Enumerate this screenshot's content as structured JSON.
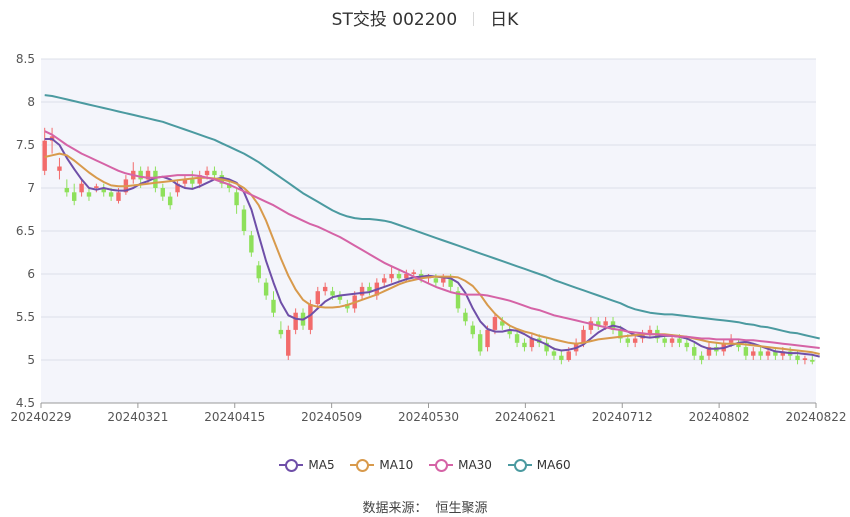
{
  "header": {
    "title": "ST交投 002200",
    "period": "日K"
  },
  "source": {
    "label": "数据来源：",
    "name": "恒生聚源"
  },
  "legend": [
    {
      "name": "MA5",
      "color": "#6f4fa8"
    },
    {
      "name": "MA10",
      "color": "#d89a4c"
    },
    {
      "name": "MA30",
      "color": "#d563a6"
    },
    {
      "name": "MA60",
      "color": "#4b9aa0"
    }
  ],
  "colors": {
    "up": "#f26b6b",
    "down": "#8ee05a",
    "plot_bg": "#f4f5fb",
    "grid": "#dde0ea"
  },
  "chart_data": {
    "type": "candlestick",
    "ylim": [
      4.5,
      8.5
    ],
    "yticks": [
      "8.5",
      "8",
      "7.5",
      "7",
      "6.5",
      "6",
      "5.5",
      "5",
      "4.5"
    ],
    "xlabels": [
      "20240229",
      "20240321",
      "20240415",
      "20240509",
      "20240530",
      "20240621",
      "20240712",
      "20240802",
      "20240822"
    ],
    "grid": true,
    "legend_position": "bottom",
    "candles": [
      [
        7.2,
        7.55,
        7.7,
        7.15
      ],
      [
        7.55,
        7.6,
        7.7,
        7.4
      ],
      [
        7.2,
        7.25,
        7.35,
        7.1
      ],
      [
        7.0,
        6.95,
        7.1,
        6.9
      ],
      [
        6.95,
        6.85,
        7.05,
        6.8
      ],
      [
        6.95,
        7.05,
        7.1,
        6.9
      ],
      [
        6.95,
        6.9,
        7.0,
        6.85
      ],
      [
        7.0,
        7.02,
        7.05,
        6.95
      ],
      [
        7.0,
        6.95,
        7.05,
        6.9
      ],
      [
        6.95,
        6.9,
        7.0,
        6.85
      ],
      [
        6.85,
        6.95,
        7.0,
        6.82
      ],
      [
        6.95,
        7.1,
        7.15,
        6.92
      ],
      [
        7.1,
        7.2,
        7.3,
        7.05
      ],
      [
        7.2,
        7.1,
        7.25,
        7.0
      ],
      [
        7.1,
        7.2,
        7.25,
        7.05
      ],
      [
        7.2,
        7.0,
        7.25,
        6.95
      ],
      [
        7.0,
        6.9,
        7.05,
        6.85
      ],
      [
        6.9,
        6.8,
        6.95,
        6.75
      ],
      [
        6.95,
        7.05,
        7.1,
        6.9
      ],
      [
        7.05,
        7.1,
        7.15,
        7.0
      ],
      [
        7.1,
        7.05,
        7.2,
        7.0
      ],
      [
        7.05,
        7.15,
        7.2,
        7.0
      ],
      [
        7.15,
        7.2,
        7.25,
        7.1
      ],
      [
        7.2,
        7.15,
        7.25,
        7.1
      ],
      [
        7.15,
        7.05,
        7.2,
        7.0
      ],
      [
        7.05,
        7.0,
        7.1,
        6.95
      ],
      [
        6.95,
        6.8,
        7.0,
        6.7
      ],
      [
        6.75,
        6.5,
        6.8,
        6.45
      ],
      [
        6.45,
        6.25,
        6.5,
        6.2
      ],
      [
        6.1,
        5.95,
        6.15,
        5.9
      ],
      [
        5.9,
        5.75,
        5.95,
        5.7
      ],
      [
        5.7,
        5.55,
        5.8,
        5.5
      ],
      [
        5.35,
        5.3,
        5.45,
        5.25
      ],
      [
        5.05,
        5.35,
        5.4,
        5.0
      ],
      [
        5.35,
        5.55,
        5.6,
        5.3
      ],
      [
        5.55,
        5.4,
        5.6,
        5.35
      ],
      [
        5.35,
        5.65,
        5.7,
        5.3
      ],
      [
        5.65,
        5.8,
        5.85,
        5.6
      ],
      [
        5.8,
        5.85,
        5.9,
        5.75
      ],
      [
        5.8,
        5.75,
        5.85,
        5.7
      ],
      [
        5.75,
        5.7,
        5.8,
        5.65
      ],
      [
        5.65,
        5.6,
        5.7,
        5.55
      ],
      [
        5.6,
        5.75,
        5.8,
        5.55
      ],
      [
        5.75,
        5.85,
        5.9,
        5.7
      ],
      [
        5.85,
        5.8,
        5.9,
        5.75
      ],
      [
        5.75,
        5.9,
        5.95,
        5.7
      ],
      [
        5.9,
        5.95,
        6.0,
        5.85
      ],
      [
        5.95,
        6.0,
        6.1,
        5.9
      ],
      [
        6.0,
        5.95,
        6.05,
        5.9
      ],
      [
        5.95,
        6.0,
        6.05,
        5.9
      ],
      [
        6.0,
        6.02,
        6.05,
        5.95
      ],
      [
        6.0,
        5.95,
        6.05,
        5.9
      ],
      [
        5.95,
        5.98,
        6.0,
        5.9
      ],
      [
        5.95,
        5.9,
        6.0,
        5.85
      ],
      [
        5.9,
        5.95,
        6.0,
        5.85
      ],
      [
        5.95,
        5.85,
        6.0,
        5.8
      ],
      [
        5.8,
        5.6,
        5.85,
        5.55
      ],
      [
        5.55,
        5.45,
        5.6,
        5.4
      ],
      [
        5.4,
        5.3,
        5.45,
        5.25
      ],
      [
        5.3,
        5.1,
        5.35,
        5.05
      ],
      [
        5.15,
        5.35,
        5.4,
        5.1
      ],
      [
        5.35,
        5.5,
        5.55,
        5.3
      ],
      [
        5.45,
        5.4,
        5.5,
        5.35
      ],
      [
        5.35,
        5.3,
        5.4,
        5.25
      ],
      [
        5.3,
        5.2,
        5.35,
        5.15
      ],
      [
        5.2,
        5.15,
        5.25,
        5.1
      ],
      [
        5.15,
        5.25,
        5.3,
        5.1
      ],
      [
        5.25,
        5.2,
        5.3,
        5.15
      ],
      [
        5.2,
        5.1,
        5.25,
        5.05
      ],
      [
        5.1,
        5.05,
        5.15,
        5.0
      ],
      [
        5.05,
        5.0,
        5.1,
        4.95
      ],
      [
        5.0,
        5.1,
        5.15,
        4.98
      ],
      [
        5.1,
        5.2,
        5.25,
        5.05
      ],
      [
        5.2,
        5.35,
        5.4,
        5.15
      ],
      [
        5.35,
        5.45,
        5.5,
        5.3
      ],
      [
        5.45,
        5.4,
        5.5,
        5.35
      ],
      [
        5.4,
        5.45,
        5.5,
        5.35
      ],
      [
        5.45,
        5.35,
        5.5,
        5.3
      ],
      [
        5.35,
        5.25,
        5.4,
        5.2
      ],
      [
        5.25,
        5.2,
        5.3,
        5.15
      ],
      [
        5.2,
        5.25,
        5.3,
        5.15
      ],
      [
        5.25,
        5.3,
        5.35,
        5.2
      ],
      [
        5.3,
        5.35,
        5.4,
        5.25
      ],
      [
        5.35,
        5.25,
        5.4,
        5.2
      ],
      [
        5.25,
        5.2,
        5.3,
        5.15
      ],
      [
        5.2,
        5.25,
        5.3,
        5.15
      ],
      [
        5.25,
        5.2,
        5.3,
        5.15
      ],
      [
        5.2,
        5.15,
        5.25,
        5.1
      ],
      [
        5.15,
        5.05,
        5.2,
        5.0
      ],
      [
        5.05,
        5.0,
        5.1,
        4.95
      ],
      [
        5.05,
        5.15,
        5.2,
        5.0
      ],
      [
        5.15,
        5.1,
        5.2,
        5.05
      ],
      [
        5.1,
        5.2,
        5.25,
        5.05
      ],
      [
        5.2,
        5.25,
        5.3,
        5.15
      ],
      [
        5.2,
        5.15,
        5.25,
        5.1
      ],
      [
        5.15,
        5.05,
        5.2,
        5.0
      ],
      [
        5.05,
        5.1,
        5.15,
        5.0
      ],
      [
        5.1,
        5.05,
        5.15,
        5.0
      ],
      [
        5.05,
        5.1,
        5.15,
        5.0
      ],
      [
        5.1,
        5.05,
        5.15,
        5.0
      ],
      [
        5.05,
        5.1,
        5.15,
        5.0
      ],
      [
        5.1,
        5.05,
        5.15,
        5.0
      ],
      [
        5.05,
        5.0,
        5.1,
        4.95
      ],
      [
        5.0,
        5.02,
        5.05,
        4.95
      ],
      [
        5.0,
        4.98,
        5.05,
        4.95
      ]
    ],
    "series": [
      {
        "name": "MA5",
        "values": [
          7.57,
          7.57,
          7.5,
          7.35,
          7.22,
          7.1,
          7.0,
          6.98,
          7.0,
          6.98,
          6.97,
          6.97,
          7.0,
          7.05,
          7.08,
          7.12,
          7.13,
          7.1,
          7.04,
          7.0,
          6.99,
          7.02,
          7.06,
          7.1,
          7.12,
          7.1,
          7.06,
          6.95,
          6.75,
          6.45,
          6.15,
          5.9,
          5.67,
          5.52,
          5.48,
          5.47,
          5.52,
          5.6,
          5.68,
          5.73,
          5.75,
          5.76,
          5.77,
          5.78,
          5.79,
          5.82,
          5.85,
          5.88,
          5.91,
          5.94,
          5.96,
          5.97,
          5.98,
          5.97,
          5.96,
          5.95,
          5.9,
          5.78,
          5.6,
          5.45,
          5.36,
          5.33,
          5.33,
          5.35,
          5.34,
          5.3,
          5.25,
          5.22,
          5.18,
          5.13,
          5.11,
          5.12,
          5.14,
          5.18,
          5.25,
          5.32,
          5.37,
          5.4,
          5.38,
          5.33,
          5.29,
          5.27,
          5.26,
          5.27,
          5.28,
          5.28,
          5.27,
          5.25,
          5.21,
          5.16,
          5.13,
          5.13,
          5.14,
          5.17,
          5.2,
          5.21,
          5.19,
          5.16,
          5.13,
          5.1,
          5.09,
          5.08,
          5.08,
          5.07,
          5.06,
          5.04
        ]
      },
      {
        "name": "MA10",
        "values": [
          7.36,
          7.38,
          7.4,
          7.38,
          7.32,
          7.25,
          7.18,
          7.12,
          7.07,
          7.03,
          7.02,
          7.02,
          7.03,
          7.04,
          7.05,
          7.06,
          7.07,
          7.08,
          7.09,
          7.1,
          7.11,
          7.12,
          7.12,
          7.11,
          7.1,
          7.08,
          7.05,
          7.0,
          6.92,
          6.8,
          6.62,
          6.4,
          6.18,
          5.98,
          5.82,
          5.7,
          5.64,
          5.62,
          5.61,
          5.61,
          5.62,
          5.64,
          5.67,
          5.7,
          5.73,
          5.76,
          5.8,
          5.84,
          5.88,
          5.91,
          5.93,
          5.95,
          5.96,
          5.97,
          5.97,
          5.97,
          5.96,
          5.92,
          5.86,
          5.76,
          5.64,
          5.54,
          5.46,
          5.4,
          5.36,
          5.33,
          5.31,
          5.28,
          5.26,
          5.24,
          5.22,
          5.2,
          5.19,
          5.2,
          5.22,
          5.24,
          5.25,
          5.26,
          5.27,
          5.28,
          5.29,
          5.3,
          5.3,
          5.3,
          5.3,
          5.29,
          5.28,
          5.27,
          5.25,
          5.23,
          5.21,
          5.2,
          5.19,
          5.19,
          5.19,
          5.18,
          5.17,
          5.16,
          5.15,
          5.14,
          5.13,
          5.12,
          5.11,
          5.1,
          5.09,
          5.07
        ]
      },
      {
        "name": "MA30",
        "values": [
          7.66,
          7.62,
          7.56,
          7.5,
          7.45,
          7.4,
          7.36,
          7.32,
          7.28,
          7.24,
          7.2,
          7.17,
          7.15,
          7.13,
          7.12,
          7.12,
          7.13,
          7.14,
          7.15,
          7.15,
          7.15,
          7.14,
          7.12,
          7.1,
          7.07,
          7.04,
          7.0,
          6.96,
          6.92,
          6.88,
          6.84,
          6.8,
          6.75,
          6.7,
          6.66,
          6.62,
          6.58,
          6.55,
          6.51,
          6.47,
          6.43,
          6.38,
          6.33,
          6.28,
          6.23,
          6.18,
          6.13,
          6.09,
          6.05,
          6.01,
          5.97,
          5.93,
          5.89,
          5.85,
          5.82,
          5.79,
          5.77,
          5.76,
          5.76,
          5.76,
          5.75,
          5.73,
          5.71,
          5.69,
          5.66,
          5.63,
          5.6,
          5.58,
          5.55,
          5.52,
          5.5,
          5.48,
          5.46,
          5.44,
          5.42,
          5.4,
          5.38,
          5.36,
          5.35,
          5.33,
          5.32,
          5.31,
          5.3,
          5.3,
          5.29,
          5.28,
          5.27,
          5.27,
          5.26,
          5.25,
          5.25,
          5.24,
          5.24,
          5.24,
          5.24,
          5.23,
          5.23,
          5.22,
          5.21,
          5.2,
          5.19,
          5.18,
          5.17,
          5.16,
          5.15,
          5.14
        ]
      },
      {
        "name": "MA60",
        "values": [
          8.08,
          8.07,
          8.05,
          8.03,
          8.01,
          7.99,
          7.97,
          7.95,
          7.93,
          7.91,
          7.89,
          7.87,
          7.85,
          7.83,
          7.81,
          7.79,
          7.77,
          7.74,
          7.71,
          7.68,
          7.65,
          7.62,
          7.59,
          7.56,
          7.52,
          7.48,
          7.44,
          7.4,
          7.35,
          7.3,
          7.24,
          7.18,
          7.12,
          7.06,
          7.0,
          6.94,
          6.89,
          6.84,
          6.79,
          6.74,
          6.7,
          6.67,
          6.65,
          6.64,
          6.64,
          6.63,
          6.62,
          6.6,
          6.57,
          6.54,
          6.51,
          6.48,
          6.45,
          6.42,
          6.39,
          6.36,
          6.33,
          6.3,
          6.27,
          6.24,
          6.21,
          6.18,
          6.15,
          6.12,
          6.09,
          6.06,
          6.03,
          6.0,
          5.97,
          5.93,
          5.9,
          5.87,
          5.84,
          5.81,
          5.78,
          5.75,
          5.72,
          5.69,
          5.66,
          5.62,
          5.59,
          5.57,
          5.55,
          5.54,
          5.53,
          5.53,
          5.52,
          5.51,
          5.5,
          5.49,
          5.48,
          5.47,
          5.46,
          5.45,
          5.44,
          5.42,
          5.41,
          5.39,
          5.38,
          5.36,
          5.34,
          5.32,
          5.31,
          5.29,
          5.27,
          5.25
        ]
      }
    ]
  }
}
